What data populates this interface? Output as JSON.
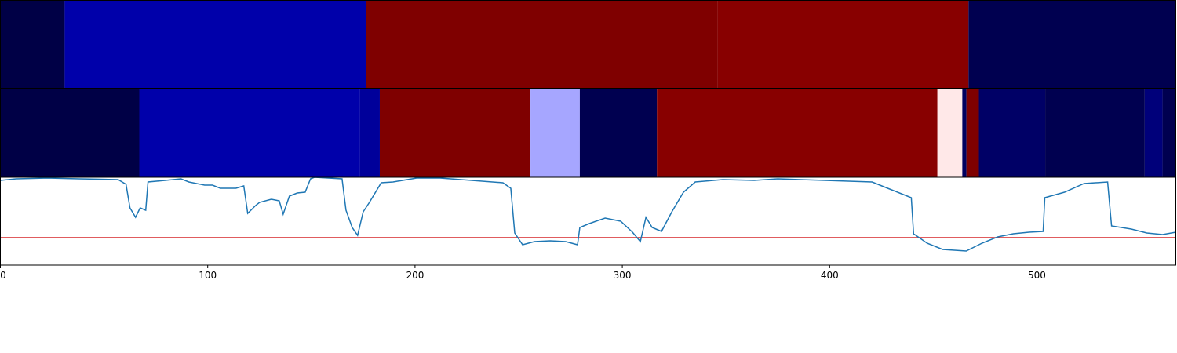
{
  "chart_data": {
    "type": "line",
    "xlim": [
      0,
      567
    ],
    "xticks": [
      0,
      100,
      200,
      300,
      400,
      500
    ],
    "ylim": [
      0,
      112
    ],
    "threshold": 35,
    "threshold_color": "#d62728",
    "color": "#1f77b4",
    "bands": [
      {
        "segments": [
          {
            "start": 0,
            "end": 31,
            "color": "#000046"
          },
          {
            "start": 31,
            "end": 176.5,
            "color": "#0000aa"
          },
          {
            "start": 176.5,
            "end": 346,
            "color": "#7f0000"
          },
          {
            "start": 346,
            "end": 467,
            "color": "#880000"
          },
          {
            "start": 467,
            "end": 567,
            "color": "#000050"
          }
        ]
      },
      {
        "segments": [
          {
            "start": 0,
            "end": 67,
            "color": "#000046"
          },
          {
            "start": 67,
            "end": 173.5,
            "color": "#0000aa"
          },
          {
            "start": 173.5,
            "end": 183,
            "color": "#00009a"
          },
          {
            "start": 183,
            "end": 255.7,
            "color": "#7f0000"
          },
          {
            "start": 255.7,
            "end": 279.5,
            "color": "#a6a6ff"
          },
          {
            "start": 279.5,
            "end": 316.7,
            "color": "#000050"
          },
          {
            "start": 316.7,
            "end": 452,
            "color": "#880000"
          },
          {
            "start": 452,
            "end": 464,
            "color": "#ffe8e8"
          },
          {
            "start": 464,
            "end": 466,
            "color": "#000060"
          },
          {
            "start": 466,
            "end": 472,
            "color": "#7f0000"
          },
          {
            "start": 472,
            "end": 504,
            "color": "#000066"
          },
          {
            "start": 504,
            "end": 552,
            "color": "#000050"
          },
          {
            "start": 552,
            "end": 560.6,
            "color": "#00007a"
          },
          {
            "start": 560.6,
            "end": 567,
            "color": "#000050"
          }
        ]
      }
    ],
    "x": [
      0,
      7.6,
      22.7,
      37.9,
      56.8,
      60.6,
      62.5,
      65.2,
      67.4,
      70.1,
      71.2,
      79.5,
      87.1,
      90.9,
      98.5,
      102.3,
      106.1,
      113.6,
      117.4,
      119.3,
      123.1,
      125,
      130.7,
      134.5,
      136.4,
      139.4,
      143.2,
      147,
      149.6,
      151.5,
      164.8,
      166.7,
      169.7,
      172.3,
      175,
      178,
      183.7,
      189.4,
      200.8,
      212.1,
      227.3,
      242.4,
      246.2,
      248.1,
      251.9,
      257.6,
      265.2,
      272.7,
      278.4,
      279.5,
      284.1,
      291.7,
      299.2,
      304.9,
      308.7,
      311.4,
      314.4,
      318.9,
      323.9,
      329.5,
      335.2,
      348.5,
      363.6,
      375,
      397.7,
      420.5,
      428,
      435.6,
      439.4,
      440.5,
      447,
      454.5,
      465.9,
      473.5,
      481.1,
      488.6,
      496.2,
      503,
      503.8,
      513.3,
      522.7,
      534.1,
      536,
      545.5,
      553,
      560.6,
      567
    ],
    "values": [
      108,
      110,
      111,
      110,
      109,
      103,
      73,
      61,
      73,
      70,
      106,
      108,
      110,
      106,
      102,
      102,
      98,
      98,
      101,
      66,
      76,
      80,
      84,
      82,
      65,
      88,
      92,
      93,
      110,
      112,
      110,
      70,
      48,
      38,
      68,
      80,
      105,
      106,
      111,
      111,
      108,
      105,
      98,
      41,
      26,
      30,
      31,
      30,
      26,
      48,
      53,
      60,
      56,
      42,
      30,
      61,
      48,
      43,
      68,
      93,
      106,
      109,
      108,
      110,
      108,
      106,
      98,
      90,
      86,
      40,
      28,
      20,
      18,
      28,
      36,
      40,
      42,
      43,
      86,
      93,
      104,
      106,
      50,
      46,
      41,
      39,
      42
    ]
  }
}
